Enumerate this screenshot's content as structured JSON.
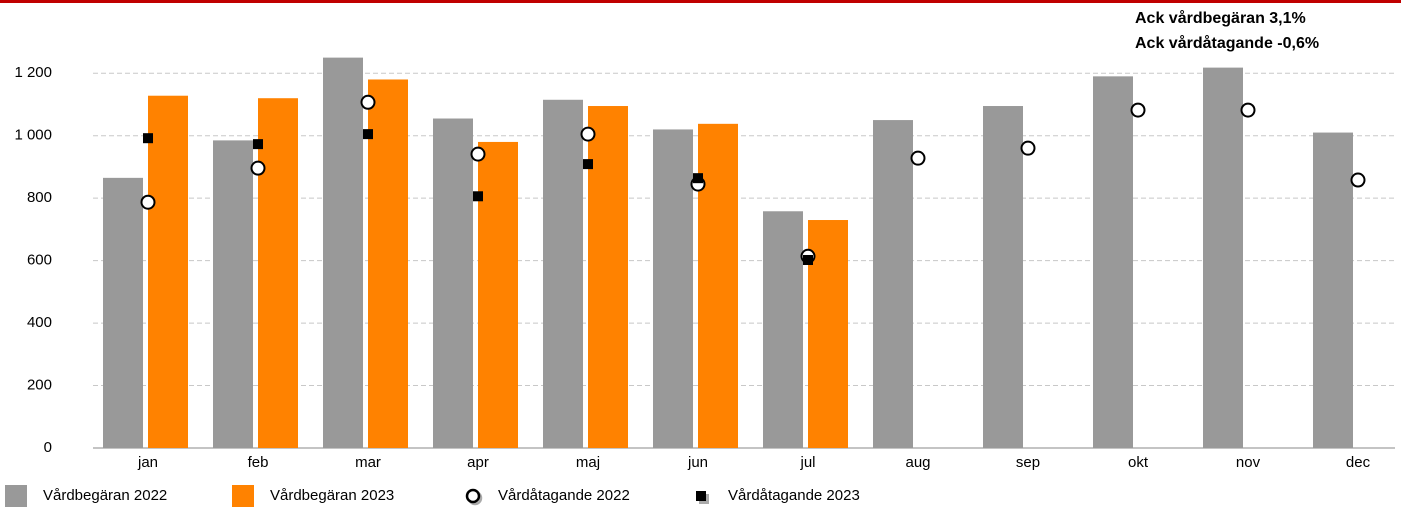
{
  "chart_data": {
    "type": "bar",
    "annotations": [
      "Ack vårdbegäran 3,1%",
      "Ack vårdåtagande -0,6%"
    ],
    "categories": [
      "jan",
      "feb",
      "mar",
      "apr",
      "maj",
      "jun",
      "jul",
      "aug",
      "sep",
      "okt",
      "nov",
      "dec"
    ],
    "series": [
      {
        "name": "Vårdbegäran 2022",
        "type": "bar",
        "color": "#999999",
        "values": [
          865,
          985,
          1250,
          1055,
          1115,
          1020,
          758,
          1050,
          1095,
          1190,
          1218,
          1010
        ]
      },
      {
        "name": "Vårdbegäran 2023",
        "type": "bar",
        "color": "#ff8200",
        "values": [
          1128,
          1120,
          1180,
          980,
          1095,
          1038,
          730,
          null,
          null,
          null,
          null,
          null
        ]
      },
      {
        "name": "Vårdåtagande 2022",
        "type": "circle",
        "color": "#000000",
        "values": [
          787,
          896,
          1107,
          941,
          1005,
          845,
          614,
          928,
          960,
          1082,
          1082,
          858
        ]
      },
      {
        "name": "Vårdåtagande 2023",
        "type": "square",
        "color": "#000000",
        "values": [
          992,
          973,
          1005,
          806,
          909,
          864,
          602,
          null,
          null,
          null,
          null,
          null
        ]
      }
    ],
    "ylim": [
      0,
      1300
    ],
    "yticks": [
      0,
      200,
      400,
      600,
      800,
      {
        "value": 1000,
        "label": "1 000"
      },
      {
        "value": 1200,
        "label": "1 200"
      }
    ],
    "grid": true,
    "legend": "bottom"
  }
}
